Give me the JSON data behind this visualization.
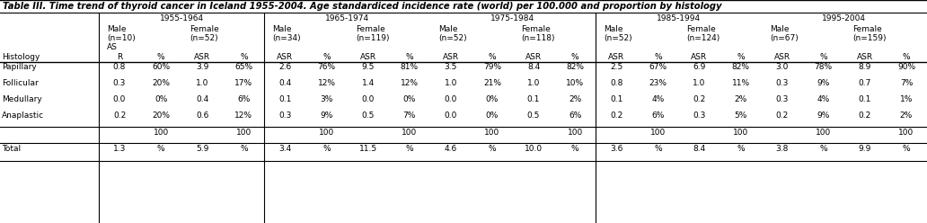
{
  "title": "Table III. Time trend of thyroid cancer in Iceland 1955-2004. Age standardiced incidence rate (world) per 100.000 and proportion by histology",
  "bg_color": "#ffffff",
  "periods": [
    "1955-1964",
    "1965-1974",
    "1975-1984",
    "1985-1994",
    "1995-2004"
  ],
  "male_ns": [
    "(n=10)",
    "(n=34)",
    "(n=52)",
    "(n=52)",
    "(n=67)"
  ],
  "female_ns": [
    "(n=52)",
    "(n=119)",
    "(n=118)",
    "(n=124)",
    "(n=159)"
  ],
  "rows": {
    "Papillary": [
      "0.8",
      "60%",
      "3.9",
      "65%",
      "2.6",
      "76%",
      "9.5",
      "81%",
      "3.5",
      "79%",
      "8.4",
      "82%",
      "2.5",
      "67%",
      "6.9",
      "82%",
      "3.0",
      "78%",
      "8.9",
      "90%"
    ],
    "Follicular": [
      "0.3",
      "20%",
      "1.0",
      "17%",
      "0.4",
      "12%",
      "1.4",
      "12%",
      "1.0",
      "21%",
      "1.0",
      "10%",
      "0.8",
      "23%",
      "1.0",
      "11%",
      "0.3",
      "9%",
      "0.7",
      "7%"
    ],
    "Medullary": [
      "0.0",
      "0%",
      "0.4",
      "6%",
      "0.1",
      "3%",
      "0.0",
      "0%",
      "0.0",
      "0%",
      "0.1",
      "2%",
      "0.1",
      "4%",
      "0.2",
      "2%",
      "0.3",
      "4%",
      "0.1",
      "1%"
    ],
    "Anaplastic": [
      "0.2",
      "20%",
      "0.6",
      "12%",
      "0.3",
      "9%",
      "0.5",
      "7%",
      "0.0",
      "0%",
      "0.5",
      "6%",
      "0.2",
      "6%",
      "0.3",
      "5%",
      "0.2",
      "9%",
      "0.2",
      "2%"
    ]
  },
  "pct100_display": [
    "",
    "100",
    "",
    "100",
    "",
    "100",
    "",
    "100",
    "",
    "100",
    "",
    "100",
    "",
    "100",
    "",
    "100",
    "",
    "100",
    "",
    "100"
  ],
  "total_row": [
    "1.3",
    "%",
    "5.9",
    "%",
    "3.4",
    "%",
    "11.5",
    "%",
    "4.6",
    "%",
    "10.0",
    "%",
    "3.6",
    "%",
    "8.4",
    "%",
    "3.8",
    "%",
    "9.9",
    "%"
  ],
  "title_fs": 7.2,
  "header_fs": 6.5,
  "cell_fs": 6.5,
  "sep_after_periods": [
    0,
    2
  ]
}
